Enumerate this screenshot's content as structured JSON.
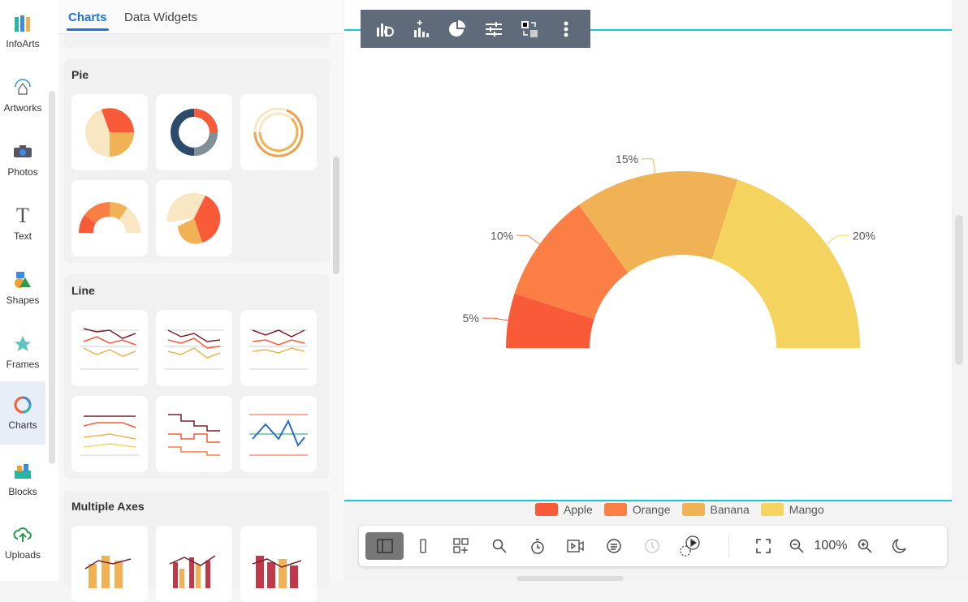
{
  "rail": [
    {
      "label": "InfoArts",
      "icon": "infoarts-icon"
    },
    {
      "label": "Artworks",
      "icon": "artworks-icon"
    },
    {
      "label": "Photos",
      "icon": "camera-icon"
    },
    {
      "label": "Text",
      "icon": "text-icon"
    },
    {
      "label": "Shapes",
      "icon": "shapes-icon"
    },
    {
      "label": "Frames",
      "icon": "star-icon"
    },
    {
      "label": "Charts",
      "icon": "charts-icon"
    },
    {
      "label": "Blocks",
      "icon": "blocks-icon"
    },
    {
      "label": "Uploads",
      "icon": "upload-icon"
    }
  ],
  "tabs": {
    "charts": "Charts",
    "widgets": "Data Widgets"
  },
  "sections": {
    "pie": "Pie",
    "line": "Line",
    "multi": "Multiple Axes"
  },
  "icons": {
    "text_glyph": "T"
  },
  "bottombar": {
    "zoom": "100%"
  },
  "chart_data": {
    "type": "pie",
    "variant": "half-doughnut",
    "categories": [
      "Apple",
      "Orange",
      "Banana",
      "Mango"
    ],
    "values": [
      5,
      10,
      15,
      20
    ],
    "labels": [
      "5%",
      "10%",
      "15%",
      "20%"
    ],
    "colors": [
      "#f95a37",
      "#fb7e45",
      "#f0b255",
      "#f5d35f"
    ],
    "legend": "bottom-center"
  }
}
